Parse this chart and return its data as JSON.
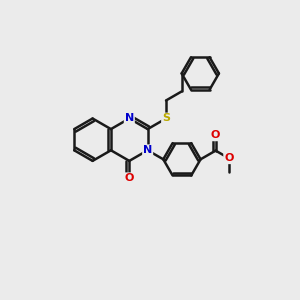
{
  "background_color": "#ebebeb",
  "bond_color": "#1a1a1a",
  "atom_colors": {
    "N": "#0000cc",
    "O": "#dd0000",
    "S": "#bbaa00"
  },
  "bond_width": 1.8,
  "fig_size": [
    3.0,
    3.0
  ],
  "dpi": 100
}
